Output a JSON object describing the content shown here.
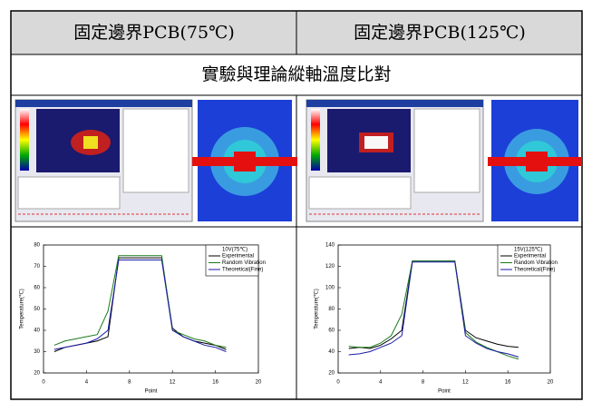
{
  "table": {
    "headers": [
      "固定邊界PCB(75℃)",
      "固定邊界PCB(125℃)"
    ],
    "subtitle": "實驗與理論縱軸溫度比對"
  },
  "chart_data": [
    {
      "type": "line",
      "legend_title": "10V(75℃)",
      "x_label": "Point",
      "y_label": "Temperature(℃)",
      "x": [
        1,
        2,
        3,
        4,
        5,
        6,
        7,
        8,
        9,
        10,
        11,
        12,
        13,
        14,
        15,
        16,
        17
      ],
      "xlim": [
        0,
        20
      ],
      "xticks": [
        0,
        4,
        8,
        12,
        16,
        20
      ],
      "ylim": [
        20,
        80
      ],
      "yticks": [
        20,
        30,
        40,
        50,
        60,
        70,
        80
      ],
      "series": [
        {
          "name": "Experimental",
          "color": "#000000",
          "values": [
            30,
            32,
            33,
            34,
            35,
            37,
            74,
            74,
            74,
            74,
            74,
            41,
            37,
            35,
            34,
            33,
            31
          ]
        },
        {
          "name": "Random Vibration",
          "color": "#1a7a1a",
          "values": [
            33,
            35,
            36,
            37,
            38,
            49,
            75,
            75,
            75,
            75,
            75,
            40,
            38,
            36,
            35,
            33,
            32
          ]
        },
        {
          "name": "Theoretical(Fine)",
          "color": "#1a1aa8",
          "values": [
            31,
            32,
            33,
            34,
            36,
            40,
            73,
            73,
            73,
            73,
            73,
            40,
            37,
            35,
            33,
            32,
            30
          ]
        }
      ]
    },
    {
      "type": "line",
      "legend_title": "15V(125℃)",
      "x_label": "Point",
      "y_label": "Temperature(℃)",
      "x": [
        1,
        2,
        3,
        4,
        5,
        6,
        7,
        8,
        9,
        10,
        11,
        12,
        13,
        14,
        15,
        16,
        17
      ],
      "xlim": [
        0,
        20
      ],
      "xticks": [
        0,
        4,
        8,
        12,
        16,
        20
      ],
      "ylim": [
        20,
        140
      ],
      "yticks": [
        20,
        40,
        60,
        80,
        100,
        120,
        140
      ],
      "series": [
        {
          "name": "Experimental",
          "color": "#000000",
          "values": [
            43,
            44,
            43,
            46,
            52,
            60,
            125,
            125,
            125,
            125,
            125,
            60,
            53,
            50,
            47,
            45,
            44
          ]
        },
        {
          "name": "Random Vibration",
          "color": "#1a7a1a",
          "values": [
            45,
            44,
            44,
            48,
            55,
            75,
            125,
            125,
            125,
            125,
            125,
            58,
            49,
            44,
            40,
            36,
            33
          ]
        },
        {
          "name": "Theoretical(Fine)",
          "color": "#1a1aa8",
          "values": [
            37,
            38,
            40,
            44,
            48,
            55,
            124,
            124,
            124,
            124,
            124,
            55,
            48,
            43,
            40,
            38,
            35
          ]
        }
      ]
    }
  ]
}
